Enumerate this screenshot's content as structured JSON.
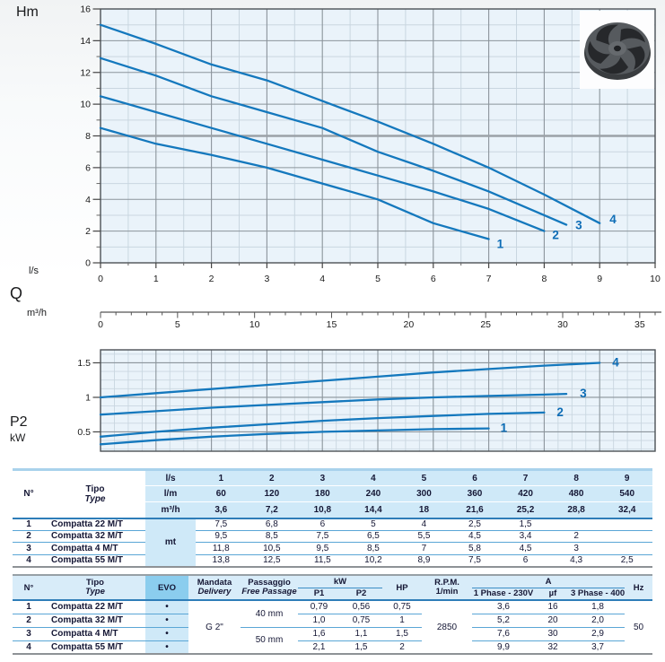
{
  "chart_labels": {
    "head_y": "Hm",
    "flow_primary_unit": "l/s",
    "flow_symbol": "Q",
    "flow_secondary_unit": "m³/h",
    "power_symbol": "P2",
    "power_unit": "kW"
  },
  "icons": {
    "impeller": "pump-impeller"
  },
  "colors": {
    "curve": "#1478bd",
    "curve_label": "#0e6db6",
    "plot_bg": "#eaf3fa",
    "grid_minor": "#c9d6e0",
    "grid_major": "#8b949b",
    "frame": "#4c5156",
    "table_light_blue": "#cfe9f8",
    "evo_header_blue": "#8bcdee",
    "divider_blue": "#2e7db8",
    "row_line_blue": "#5aa6d6"
  },
  "chart_data": [
    {
      "type": "line",
      "name": "head-flow-curves",
      "ylabel": "Hm",
      "xlabel": "Q",
      "x_units": [
        "l/s",
        "m³/h"
      ],
      "x_range_ls": [
        0,
        10
      ],
      "x_range_m3h": [
        0,
        36
      ],
      "ylim": [
        0,
        16
      ],
      "grid": true,
      "y_ticks": [
        0,
        2,
        4,
        6,
        8,
        10,
        12,
        14,
        16
      ],
      "x_ticks_ls": [
        0,
        1,
        2,
        3,
        4,
        5,
        6,
        7,
        8,
        9,
        10
      ],
      "x_ticks_m3h": [
        0,
        5,
        10,
        15,
        20,
        25,
        30,
        35
      ],
      "series": [
        {
          "label": "1",
          "points": [
            [
              0,
              8.5
            ],
            [
              1,
              7.5
            ],
            [
              2,
              6.8
            ],
            [
              3,
              6
            ],
            [
              4,
              5
            ],
            [
              5,
              4
            ],
            [
              6,
              2.5
            ],
            [
              7,
              1.5
            ]
          ]
        },
        {
          "label": "2",
          "points": [
            [
              0,
              10.5
            ],
            [
              1,
              9.5
            ],
            [
              2,
              8.5
            ],
            [
              3,
              7.5
            ],
            [
              4,
              6.5
            ],
            [
              5,
              5.5
            ],
            [
              6,
              4.5
            ],
            [
              7,
              3.4
            ],
            [
              8,
              2
            ]
          ]
        },
        {
          "label": "3",
          "points": [
            [
              0,
              12.9
            ],
            [
              1,
              11.8
            ],
            [
              2,
              10.5
            ],
            [
              3,
              9.5
            ],
            [
              4,
              8.5
            ],
            [
              5,
              7
            ],
            [
              6,
              5.8
            ],
            [
              7,
              4.5
            ],
            [
              8,
              3
            ],
            [
              8.4,
              2.4
            ]
          ]
        },
        {
          "label": "4",
          "points": [
            [
              0,
              15
            ],
            [
              1,
              13.8
            ],
            [
              2,
              12.5
            ],
            [
              3,
              11.5
            ],
            [
              4,
              10.2
            ],
            [
              5,
              8.9
            ],
            [
              6,
              7.5
            ],
            [
              7,
              6
            ],
            [
              8,
              4.3
            ],
            [
              9,
              2.5
            ]
          ]
        }
      ]
    },
    {
      "type": "line",
      "name": "power-p2-curves",
      "ylabel": "P2 kW",
      "x_range_ls": [
        0,
        10
      ],
      "ylim": [
        0.2,
        1.7
      ],
      "grid": true,
      "y_ticks": [
        0.5,
        1,
        1.5
      ],
      "y_tick_labels": [
        "0.5",
        "1",
        "1.5"
      ],
      "series": [
        {
          "label": "1",
          "points": [
            [
              0,
              0.32
            ],
            [
              1,
              0.38
            ],
            [
              2,
              0.43
            ],
            [
              3,
              0.47
            ],
            [
              4,
              0.5
            ],
            [
              5,
              0.52
            ],
            [
              6,
              0.54
            ],
            [
              7,
              0.55
            ]
          ]
        },
        {
          "label": "2",
          "points": [
            [
              0,
              0.43
            ],
            [
              1,
              0.5
            ],
            [
              2,
              0.56
            ],
            [
              3,
              0.61
            ],
            [
              4,
              0.66
            ],
            [
              5,
              0.7
            ],
            [
              6,
              0.73
            ],
            [
              7,
              0.76
            ],
            [
              8,
              0.78
            ]
          ]
        },
        {
          "label": "3",
          "points": [
            [
              0,
              0.75
            ],
            [
              1,
              0.8
            ],
            [
              2,
              0.85
            ],
            [
              3,
              0.89
            ],
            [
              4,
              0.93
            ],
            [
              5,
              0.97
            ],
            [
              6,
              1.0
            ],
            [
              7,
              1.02
            ],
            [
              8,
              1.04
            ],
            [
              8.4,
              1.05
            ]
          ]
        },
        {
          "label": "4",
          "points": [
            [
              0,
              1.0
            ],
            [
              1,
              1.06
            ],
            [
              2,
              1.12
            ],
            [
              3,
              1.18
            ],
            [
              4,
              1.24
            ],
            [
              5,
              1.3
            ],
            [
              6,
              1.36
            ],
            [
              7,
              1.41
            ],
            [
              8,
              1.46
            ],
            [
              9,
              1.5
            ]
          ]
        }
      ]
    }
  ],
  "tables": {
    "hydraulic": {
      "col_n": "N°",
      "col_tipo": "Tipo",
      "col_type": "Type",
      "body_unit": "mt",
      "unit_rows": [
        {
          "label": "l/s",
          "values": [
            "1",
            "2",
            "3",
            "4",
            "5",
            "6",
            "7",
            "8",
            "9"
          ]
        },
        {
          "label": "l/m",
          "values": [
            "60",
            "120",
            "180",
            "240",
            "300",
            "360",
            "420",
            "480",
            "540"
          ]
        },
        {
          "label": "m³/h",
          "values": [
            "3,6",
            "7,2",
            "10,8",
            "14,4",
            "18",
            "21,6",
            "25,2",
            "28,8",
            "32,4"
          ]
        }
      ],
      "rows": [
        {
          "n": "1",
          "name": "Compatta 22 M/T",
          "values": [
            "7,5",
            "6,8",
            "6",
            "5",
            "4",
            "2,5",
            "1,5",
            "",
            ""
          ]
        },
        {
          "n": "2",
          "name": "Compatta 32 M/T",
          "values": [
            "9,5",
            "8,5",
            "7,5",
            "6,5",
            "5,5",
            "4,5",
            "3,4",
            "2",
            ""
          ]
        },
        {
          "n": "3",
          "name": "Compatta 4 M/T",
          "values": [
            "11,8",
            "10,5",
            "9,5",
            "8,5",
            "7",
            "5,8",
            "4,5",
            "3",
            ""
          ]
        },
        {
          "n": "4",
          "name": "Compatta 55 M/T",
          "values": [
            "13,8",
            "12,5",
            "11,5",
            "10,2",
            "8,9",
            "7,5",
            "6",
            "4,3",
            "2,5"
          ]
        }
      ]
    },
    "specs": {
      "col_n": "N°",
      "col_tipo": "Tipo",
      "col_type": "Type",
      "col_evo": "EVO",
      "col_mandata": "Mandata",
      "col_delivery": "Delivery",
      "col_passaggio": "Passaggio",
      "col_free_passage": "Free Passage",
      "col_kw": "kW",
      "col_p1": "P1",
      "col_p2": "P2",
      "col_hp": "HP",
      "col_rpm_1": "R.P.M.",
      "col_rpm_2": "1/min",
      "col_a": "A",
      "col_1ph": "1 Phase - 230V",
      "col_uf": "µf",
      "col_3ph": "3 Phase - 400V",
      "col_hz": "Hz",
      "evo_dot": "•",
      "delivery_value": "G 2\"",
      "passage_40": "40 mm",
      "passage_50": "50 mm",
      "rpm_value": "2850",
      "hz_value": "50",
      "rows": [
        {
          "n": "1",
          "name": "Compatta 22 M/T",
          "p1": "0,79",
          "p2": "0,56",
          "hp": "0,75",
          "a230": "3,6",
          "uf": "16",
          "a400": "1,8"
        },
        {
          "n": "2",
          "name": "Compatta 32 M/T",
          "p1": "1,0",
          "p2": "0,75",
          "hp": "1",
          "a230": "5,2",
          "uf": "20",
          "a400": "2,0"
        },
        {
          "n": "3",
          "name": "Compatta 4 M/T",
          "p1": "1,6",
          "p2": "1,1",
          "hp": "1,5",
          "a230": "7,6",
          "uf": "30",
          "a400": "2,9"
        },
        {
          "n": "4",
          "name": "Compatta 55 M/T",
          "p1": "2,1",
          "p2": "1,5",
          "hp": "2",
          "a230": "9,9",
          "uf": "32",
          "a400": "3,7"
        }
      ]
    }
  }
}
